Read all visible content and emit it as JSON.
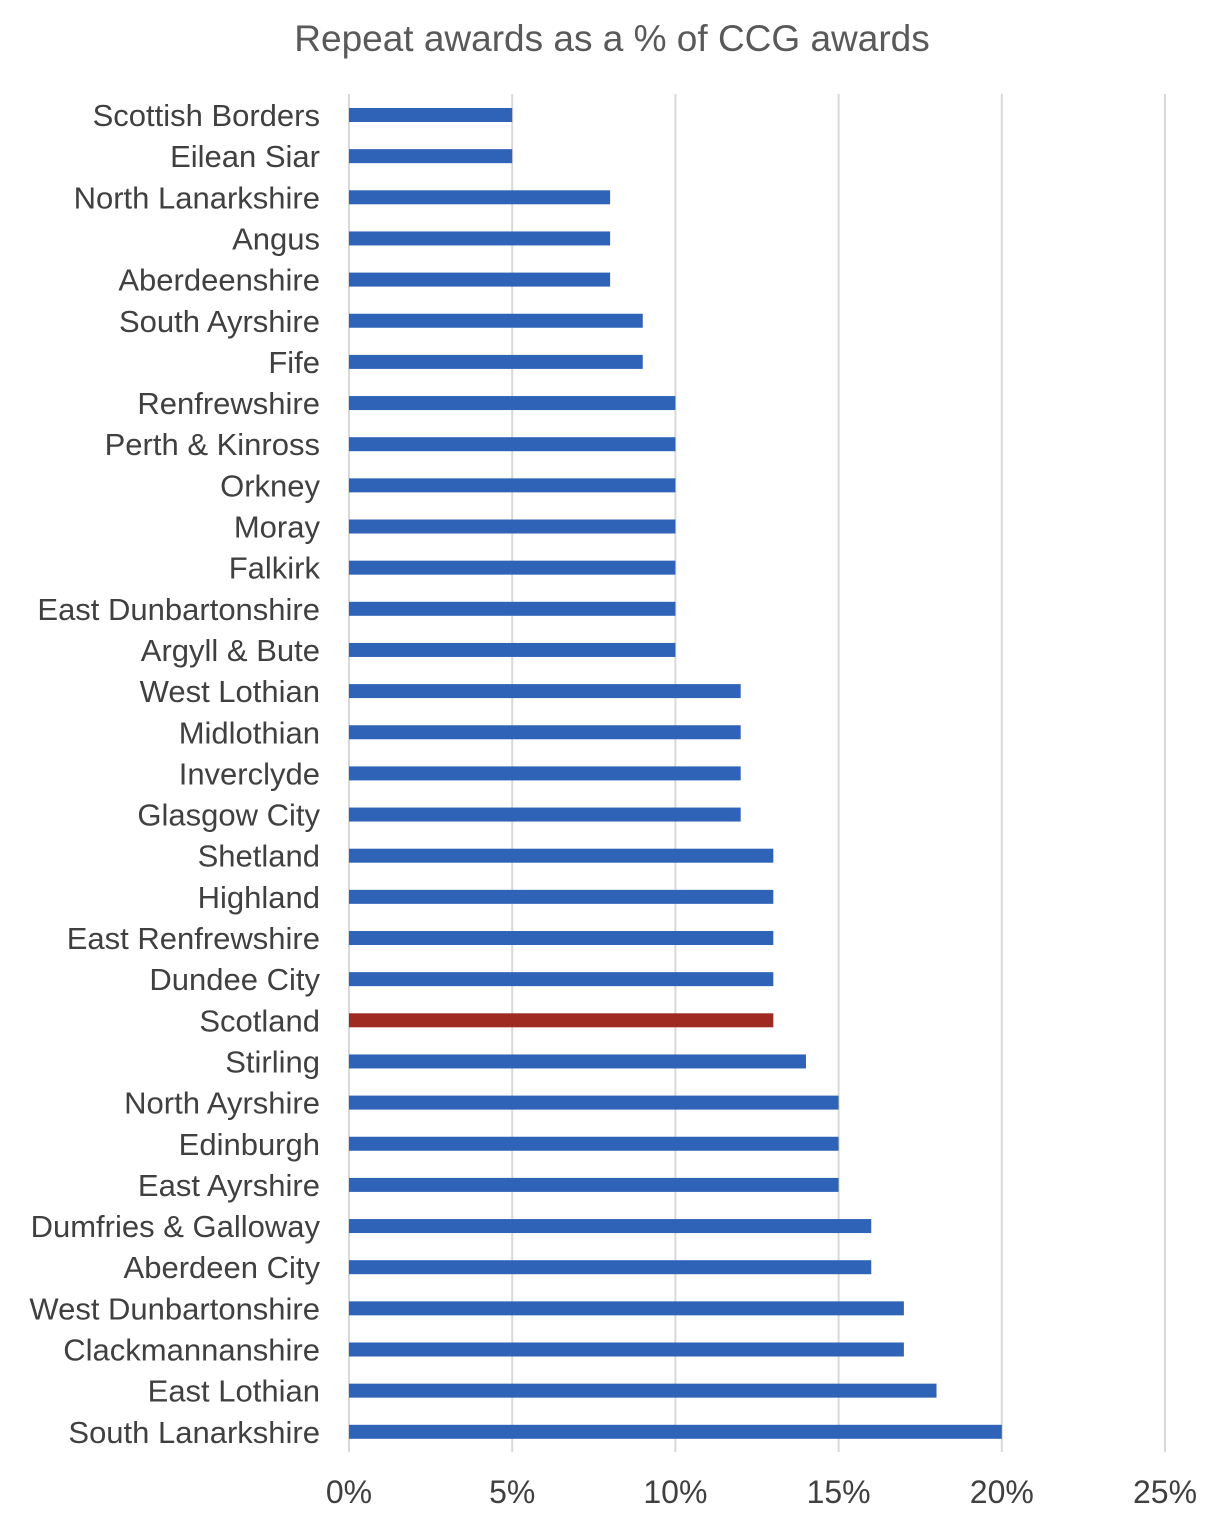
{
  "chart_data": {
    "type": "bar",
    "orientation": "horizontal",
    "title": "Repeat awards as a % of CCG awards",
    "xlabel": "",
    "ylabel": "",
    "xlim": [
      0,
      25
    ],
    "x_ticks": [
      "0%",
      "5%",
      "10%",
      "15%",
      "20%",
      "25%"
    ],
    "x_tick_values": [
      0,
      5,
      10,
      15,
      20,
      25
    ],
    "grid": "vertical gridlines",
    "legend": "none",
    "colors": {
      "default_bar": "#2f63b8",
      "highlight_bar": "#9e2a22",
      "gridline": "#d9d9d9"
    },
    "highlight_category": "Scotland",
    "categories": [
      "Scottish Borders",
      "Eilean Siar",
      "North Lanarkshire",
      "Angus",
      "Aberdeenshire",
      "South Ayrshire",
      "Fife",
      "Renfrewshire",
      "Perth & Kinross",
      "Orkney",
      "Moray",
      "Falkirk",
      "East Dunbartonshire",
      "Argyll & Bute",
      "West Lothian",
      "Midlothian",
      "Inverclyde",
      "Glasgow City",
      "Shetland",
      "Highland",
      "East Renfrewshire",
      "Dundee City",
      "Scotland",
      "Stirling",
      "North Ayrshire",
      "Edinburgh",
      "East Ayrshire",
      "Dumfries & Galloway",
      "Aberdeen City",
      "West Dunbartonshire",
      "Clackmannanshire",
      "East Lothian",
      "South Lanarkshire"
    ],
    "values": [
      5,
      5,
      8,
      8,
      8,
      9,
      9,
      10,
      10,
      10,
      10,
      10,
      10,
      10,
      12,
      12,
      12,
      12,
      13,
      13,
      13,
      13,
      13,
      14,
      15,
      15,
      15,
      16,
      16,
      17,
      17,
      18,
      20
    ],
    "value_unit": "%"
  }
}
